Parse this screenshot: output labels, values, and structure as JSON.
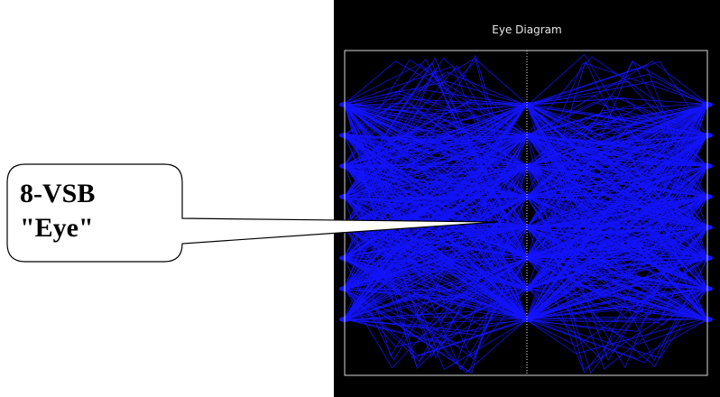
{
  "scope": {
    "title": "Eye Diagram",
    "background_color": "#000000",
    "trace_color": "#1414ff",
    "frame_color": "#d8d8d8"
  },
  "callout": {
    "line1": "8-VSB",
    "line2": "\"Eye\""
  },
  "chart_data": {
    "type": "line",
    "title": "Eye Diagram",
    "xlabel": "",
    "ylabel": "",
    "symbol_levels": [
      -7,
      -5,
      -3,
      -1,
      1,
      3,
      5,
      7
    ],
    "modulation": "8-VSB",
    "grid": false,
    "center_marker": "dotted-vertical",
    "eye_openings": 7
  }
}
